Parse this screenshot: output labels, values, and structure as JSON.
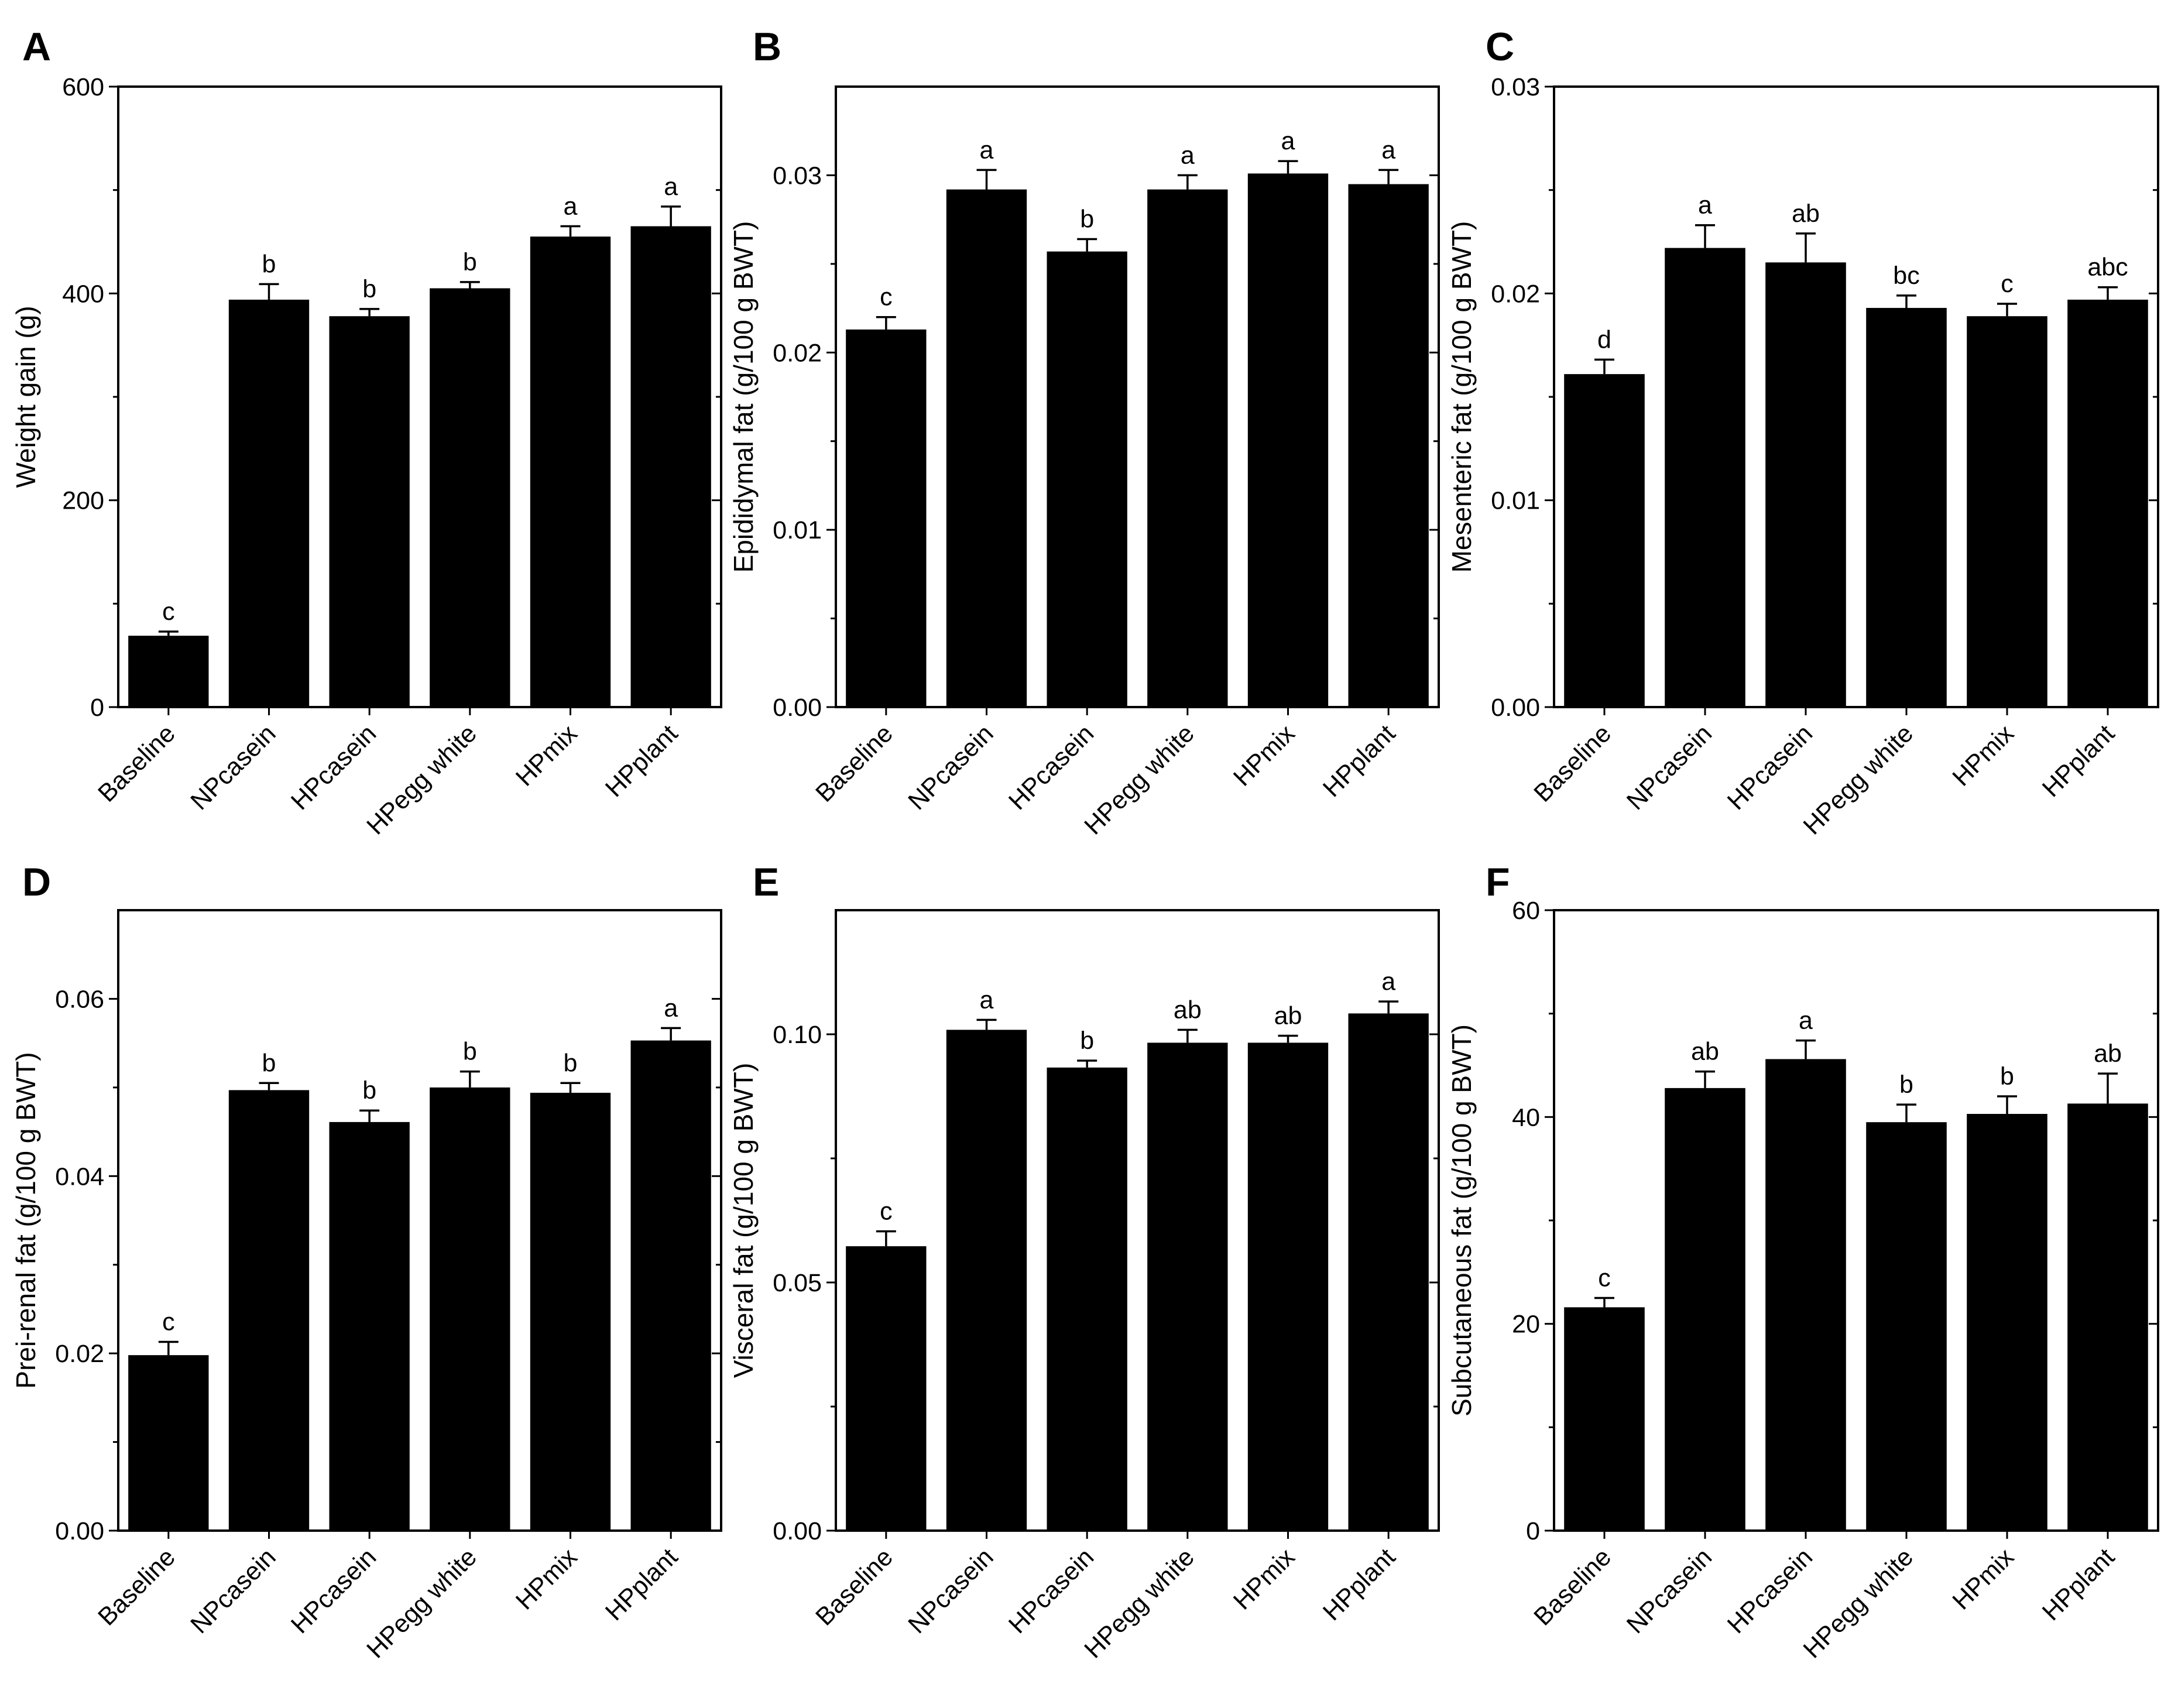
{
  "chart_data": [
    {
      "panel": "A",
      "type": "bar",
      "categories": [
        "Baseline",
        "NPcasein",
        "HPcasein",
        "HPegg white",
        "HPmix",
        "HPplant"
      ],
      "values": [
        69,
        394,
        378,
        405,
        455,
        465
      ],
      "errors": [
        4,
        15,
        7,
        6,
        10,
        19
      ],
      "labels": [
        "c",
        "b",
        "b",
        "b",
        "a",
        "a"
      ],
      "ylabel": "Weight gain (g)",
      "ylim": [
        0,
        600
      ],
      "yticks": [
        0,
        200,
        400,
        600
      ],
      "ytick_labels": [
        "0",
        "200",
        "400",
        "600"
      ]
    },
    {
      "panel": "B",
      "type": "bar",
      "categories": [
        "Baseline",
        "NPcasein",
        "HPcasein",
        "HPegg white",
        "HPmix",
        "HPplant"
      ],
      "values": [
        0.0213,
        0.0292,
        0.0257,
        0.0292,
        0.0301,
        0.0295
      ],
      "errors": [
        0.0007,
        0.0011,
        0.0007,
        0.0008,
        0.0007,
        0.0008
      ],
      "labels": [
        "c",
        "a",
        "b",
        "a",
        "a",
        "a"
      ],
      "ylabel": "Epididymal fat (g/100 g BWT)",
      "ylim": [
        0,
        0.035
      ],
      "yticks": [
        0,
        0.01,
        0.02,
        0.03
      ],
      "ytick_labels": [
        "0.00",
        "0.01",
        "0.02",
        "0.03"
      ]
    },
    {
      "panel": "C",
      "type": "bar",
      "categories": [
        "Baseline",
        "NPcasein",
        "HPcasein",
        "HPegg white",
        "HPmix",
        "HPplant"
      ],
      "values": [
        0.0161,
        0.0222,
        0.0215,
        0.0193,
        0.0189,
        0.0197
      ],
      "errors": [
        0.0007,
        0.0011,
        0.0014,
        0.0006,
        0.0006,
        0.0006
      ],
      "labels": [
        "d",
        "a",
        "ab",
        "bc",
        "c",
        "abc"
      ],
      "ylabel": "Mesenteric fat (g/100 g BWT)",
      "ylim": [
        0,
        0.03
      ],
      "yticks": [
        0,
        0.01,
        0.02,
        0.03
      ],
      "ytick_labels": [
        "0.00",
        "0.01",
        "0.02",
        "0.03"
      ]
    },
    {
      "panel": "D",
      "type": "bar",
      "categories": [
        "Baseline",
        "NPcasein",
        "HPcasein",
        "HPegg white",
        "HPmix",
        "HPplant"
      ],
      "values": [
        0.0198,
        0.0497,
        0.0461,
        0.05,
        0.0494,
        0.0553
      ],
      "errors": [
        0.0015,
        0.0008,
        0.0013,
        0.0018,
        0.0011,
        0.0014
      ],
      "labels": [
        "c",
        "b",
        "b",
        "b",
        "b",
        "a"
      ],
      "ylabel": "Prei-renal fat (g/100 g BWT)",
      "ylim": [
        0,
        0.07
      ],
      "yticks": [
        0,
        0.02,
        0.04,
        0.06
      ],
      "ytick_labels": [
        "0.00",
        "0.02",
        "0.04",
        "0.06"
      ]
    },
    {
      "panel": "E",
      "type": "bar",
      "categories": [
        "Baseline",
        "NPcasein",
        "HPcasein",
        "HPegg white",
        "HPmix",
        "HPplant"
      ],
      "values": [
        0.0573,
        0.1009,
        0.0933,
        0.0983,
        0.0983,
        0.1042
      ],
      "errors": [
        0.003,
        0.002,
        0.0014,
        0.0026,
        0.0014,
        0.0024
      ],
      "labels": [
        "c",
        "a",
        "b",
        "ab",
        "ab",
        "a"
      ],
      "ylabel": "Visceral fat (g/100 g BWT)",
      "ylim": [
        0,
        0.125
      ],
      "yticks": [
        0,
        0.05,
        0.1
      ],
      "ytick_labels": [
        "0.00",
        "0.05",
        "0.10"
      ]
    },
    {
      "panel": "F",
      "type": "bar",
      "categories": [
        "Baseline",
        "NPcasein",
        "HPcasein",
        "HPegg white",
        "HPmix",
        "HPplant"
      ],
      "values": [
        21.6,
        42.8,
        45.6,
        39.5,
        40.3,
        41.3
      ],
      "errors": [
        0.9,
        1.6,
        1.8,
        1.7,
        1.7,
        2.9
      ],
      "labels": [
        "c",
        "ab",
        "a",
        "b",
        "b",
        "ab"
      ],
      "ylabel": "Subcutaneous fat (g/100 g BWT)",
      "ylim": [
        0,
        60
      ],
      "yticks": [
        0,
        20,
        40,
        60
      ],
      "ytick_labels": [
        "0",
        "20",
        "40",
        "60"
      ]
    }
  ]
}
